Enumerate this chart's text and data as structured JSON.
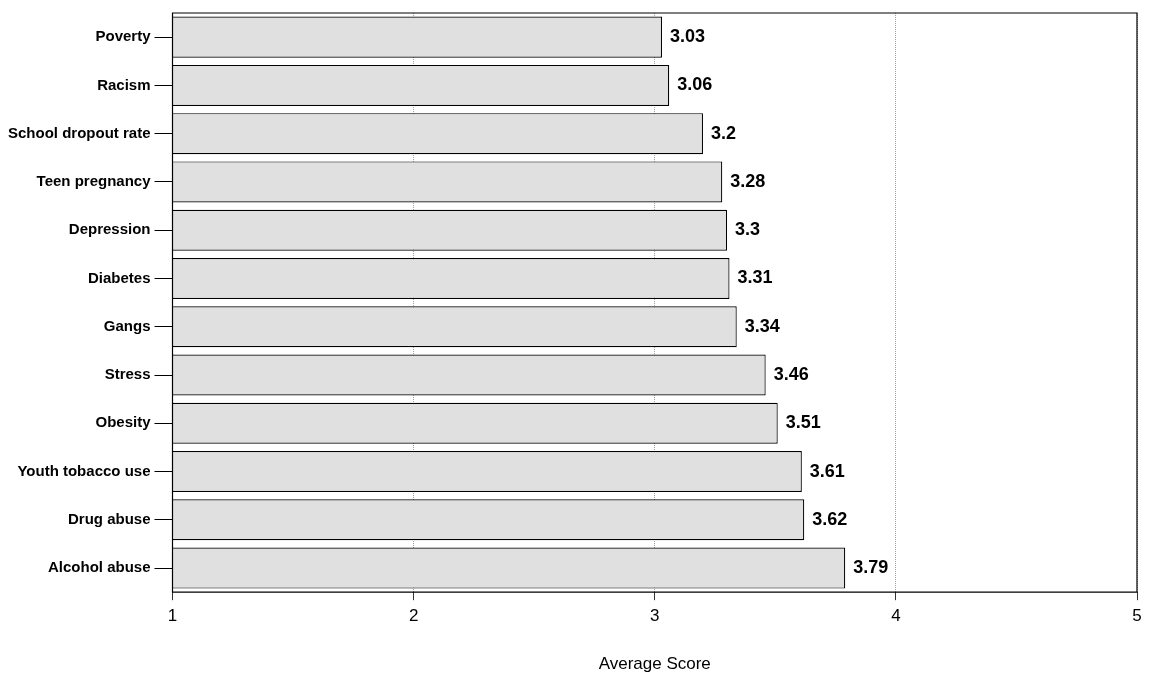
{
  "chart_data": {
    "type": "bar",
    "orientation": "horizontal",
    "categories": [
      "Poverty",
      "Racism",
      "School dropout rate",
      "Teen pregnancy",
      "Depression",
      "Diabetes",
      "Gangs",
      "Stress",
      "Obesity",
      "Youth tobacco use",
      "Drug abuse",
      "Alcohol abuse"
    ],
    "values": [
      3.03,
      3.06,
      3.2,
      3.28,
      3.3,
      3.31,
      3.34,
      3.46,
      3.51,
      3.61,
      3.62,
      3.79
    ],
    "color": "#e0e0e0",
    "xlim": [
      1,
      5
    ],
    "xticks": [
      1,
      2,
      3,
      4,
      5
    ],
    "xlabel": "Average Score",
    "grid": "x",
    "data_labels": true
  }
}
